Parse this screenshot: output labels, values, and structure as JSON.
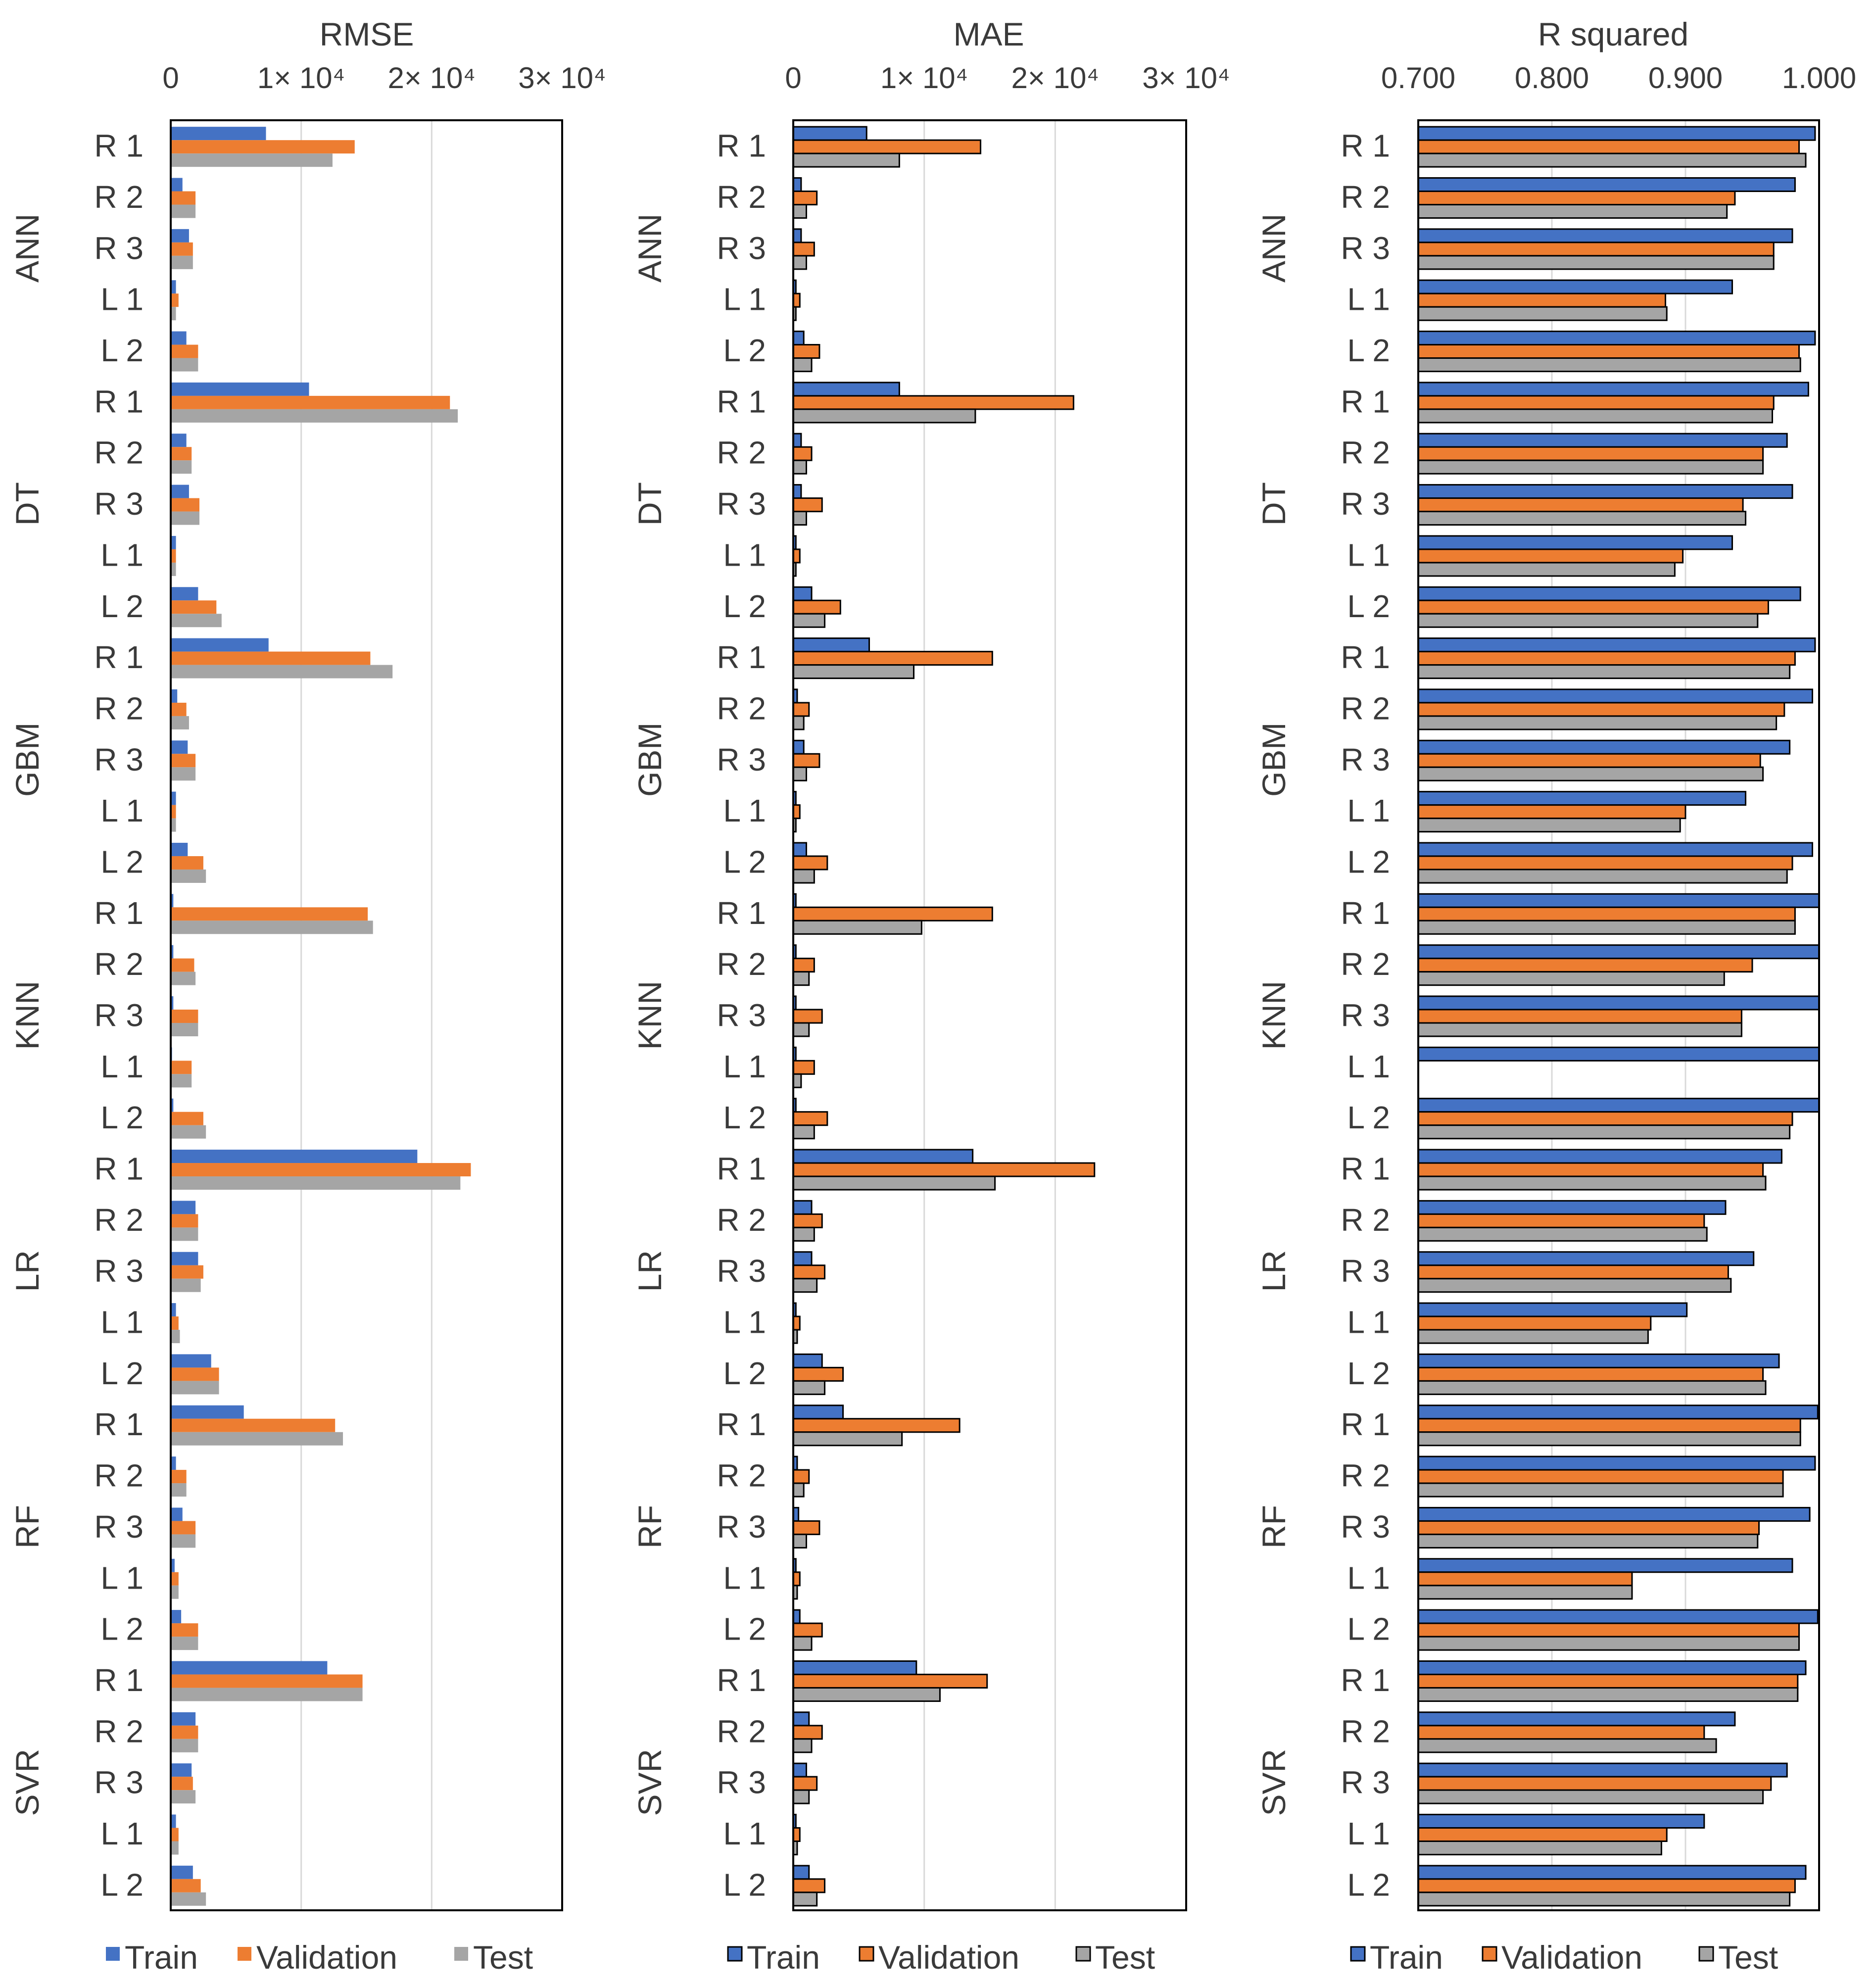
{
  "colors": {
    "train": "#4472c4",
    "validation": "#ed7d31",
    "test": "#a5a5a5",
    "frame": "#000000",
    "grid": "#d9d9d9",
    "text": "#3a3a3a"
  },
  "chart_data": [
    {
      "type": "bar",
      "orientation": "horizontal",
      "title": "RMSE",
      "x_ticks": [
        {
          "value": 0,
          "label": "0"
        },
        {
          "value": 10000,
          "label": "1× 10⁴"
        },
        {
          "value": 20000,
          "label": "2× 10⁴"
        },
        {
          "value": 30000,
          "label": "3× 10⁴"
        }
      ],
      "xlim": [
        0,
        30000
      ],
      "grid": true,
      "bar_style": "flat",
      "legend": {
        "position": "bottom",
        "entries": [
          "Train",
          "Validation",
          "Test"
        ]
      },
      "groups": [
        "ANN",
        "DT",
        "GBM",
        "KNN",
        "LR",
        "RF",
        "SVR"
      ],
      "categories": [
        "R 1",
        "R 2",
        "R 3",
        "L 1",
        "L 2"
      ],
      "series": [
        {
          "name": "Train",
          "values": [
            [
              7300,
              900,
              1400,
              400,
              1200
            ],
            [
              10600,
              1200,
              1400,
              400,
              2100
            ],
            [
              7500,
              500,
              1300,
              400,
              1300
            ],
            [
              200,
              200,
              200,
              100,
              200
            ],
            [
              18900,
              1900,
              2100,
              400,
              3100
            ],
            [
              5600,
              400,
              900,
              300,
              800
            ],
            [
              12000,
              1900,
              1600,
              400,
              1700
            ]
          ]
        },
        {
          "name": "Validation",
          "values": [
            [
              14100,
              1900,
              1700,
              600,
              2100
            ],
            [
              21400,
              1600,
              2200,
              400,
              3500
            ],
            [
              15300,
              1200,
              1900,
              400,
              2500
            ],
            [
              15100,
              1800,
              2100,
              1600,
              2500
            ],
            [
              23000,
              2100,
              2500,
              600,
              3700
            ],
            [
              12600,
              1200,
              1900,
              600,
              2100
            ],
            [
              14700,
              2100,
              1700,
              600,
              2300
            ]
          ]
        },
        {
          "name": "Test",
          "values": [
            [
              12400,
              1900,
              1700,
              400,
              2100
            ],
            [
              22000,
              1600,
              2200,
              400,
              3900
            ],
            [
              17000,
              1400,
              1900,
              400,
              2700
            ],
            [
              15500,
              1900,
              2100,
              1600,
              2700
            ],
            [
              22200,
              2100,
              2300,
              700,
              3700
            ],
            [
              13200,
              1200,
              1900,
              600,
              2100
            ],
            [
              14700,
              2100,
              1900,
              600,
              2700
            ]
          ]
        }
      ]
    },
    {
      "type": "bar",
      "orientation": "horizontal",
      "title": "MAE",
      "x_ticks": [
        {
          "value": 0,
          "label": "0"
        },
        {
          "value": 10000,
          "label": "1× 10⁴"
        },
        {
          "value": 20000,
          "label": "2× 10⁴"
        },
        {
          "value": 30000,
          "label": "3× 10⁴"
        }
      ],
      "xlim": [
        0,
        30000
      ],
      "grid": true,
      "bar_style": "outlined",
      "legend": {
        "position": "bottom",
        "entries": [
          "Train",
          "Validation",
          "Test"
        ]
      },
      "groups": [
        "ANN",
        "DT",
        "GBM",
        "KNN",
        "LR",
        "RF",
        "SVR"
      ],
      "categories": [
        "R 1",
        "R 2",
        "R 3",
        "L 1",
        "L 2"
      ],
      "series": [
        {
          "name": "Train",
          "values": [
            [
              5600,
              600,
              600,
              200,
              800
            ],
            [
              8100,
              600,
              600,
              200,
              1400
            ],
            [
              5800,
              300,
              800,
              200,
              1000
            ],
            [
              200,
              200,
              200,
              200,
              200
            ],
            [
              13700,
              1400,
              1400,
              200,
              2200
            ],
            [
              3800,
              300,
              400,
              200,
              500
            ],
            [
              9400,
              1200,
              1000,
              200,
              1200
            ]
          ]
        },
        {
          "name": "Validation",
          "values": [
            [
              14300,
              1800,
              1600,
              500,
              2000
            ],
            [
              21400,
              1400,
              2200,
              500,
              3600
            ],
            [
              15200,
              1200,
              2000,
              500,
              2600
            ],
            [
              15200,
              1600,
              2200,
              1600,
              2600
            ],
            [
              23000,
              2200,
              2400,
              500,
              3800
            ],
            [
              12700,
              1200,
              2000,
              500,
              2200
            ],
            [
              14800,
              2200,
              1800,
              500,
              2400
            ]
          ]
        },
        {
          "name": "Test",
          "values": [
            [
              8100,
              1000,
              1000,
              200,
              1400
            ],
            [
              13900,
              1000,
              1000,
              200,
              2400
            ],
            [
              9200,
              800,
              1000,
              200,
              1600
            ],
            [
              9800,
              1200,
              1200,
              600,
              1600
            ],
            [
              15400,
              1600,
              1800,
              300,
              2400
            ],
            [
              8300,
              800,
              1000,
              300,
              1400
            ],
            [
              11200,
              1400,
              1200,
              300,
              1800
            ]
          ]
        }
      ]
    },
    {
      "type": "bar",
      "orientation": "horizontal",
      "title": "R squared",
      "x_ticks": [
        {
          "value": 0.7,
          "label": "0.700"
        },
        {
          "value": 0.8,
          "label": "0.800"
        },
        {
          "value": 0.9,
          "label": "0.900"
        },
        {
          "value": 1.0,
          "label": "1.000"
        }
      ],
      "xlim": [
        0.7,
        1.0
      ],
      "grid": true,
      "bar_style": "outlined",
      "legend": {
        "position": "bottom",
        "entries": [
          "Train",
          "Validation",
          "Test"
        ]
      },
      "groups": [
        "ANN",
        "DT",
        "GBM",
        "KNN",
        "LR",
        "RF",
        "SVR"
      ],
      "categories": [
        "R 1",
        "R 2",
        "R 3",
        "L 1",
        "L 2"
      ],
      "series": [
        {
          "name": "Train",
          "values": [
            [
              0.997,
              0.982,
              0.98,
              0.935,
              0.997
            ],
            [
              0.992,
              0.976,
              0.98,
              0.935,
              0.986
            ],
            [
              0.997,
              0.995,
              0.978,
              0.945,
              0.995
            ],
            [
              1.0,
              1.0,
              1.0,
              1.0,
              1.0
            ],
            [
              0.972,
              0.93,
              0.951,
              0.901,
              0.97
            ],
            [
              0.999,
              0.997,
              0.993,
              0.98,
              0.999
            ],
            [
              0.99,
              0.937,
              0.976,
              0.914,
              0.99
            ]
          ]
        },
        {
          "name": "Validation",
          "values": [
            [
              0.985,
              0.937,
              0.966,
              0.885,
              0.985
            ],
            [
              0.966,
              0.958,
              0.943,
              0.898,
              0.962
            ],
            [
              0.982,
              0.974,
              0.956,
              0.9,
              0.98
            ],
            [
              0.982,
              0.95,
              0.942,
              0.7,
              0.98
            ],
            [
              0.958,
              0.914,
              0.932,
              0.874,
              0.958
            ],
            [
              0.986,
              0.973,
              0.955,
              0.86,
              0.985
            ],
            [
              0.984,
              0.914,
              0.964,
              0.886,
              0.982
            ]
          ]
        },
        {
          "name": "Test",
          "values": [
            [
              0.99,
              0.931,
              0.966,
              0.886,
              0.986
            ],
            [
              0.965,
              0.958,
              0.945,
              0.892,
              0.954
            ],
            [
              0.978,
              0.968,
              0.958,
              0.896,
              0.976
            ],
            [
              0.982,
              0.929,
              0.942,
              0.7,
              0.978
            ],
            [
              0.96,
              0.916,
              0.934,
              0.872,
              0.96
            ],
            [
              0.986,
              0.973,
              0.954,
              0.86,
              0.985
            ],
            [
              0.984,
              0.923,
              0.958,
              0.882,
              0.978
            ]
          ]
        }
      ]
    }
  ]
}
